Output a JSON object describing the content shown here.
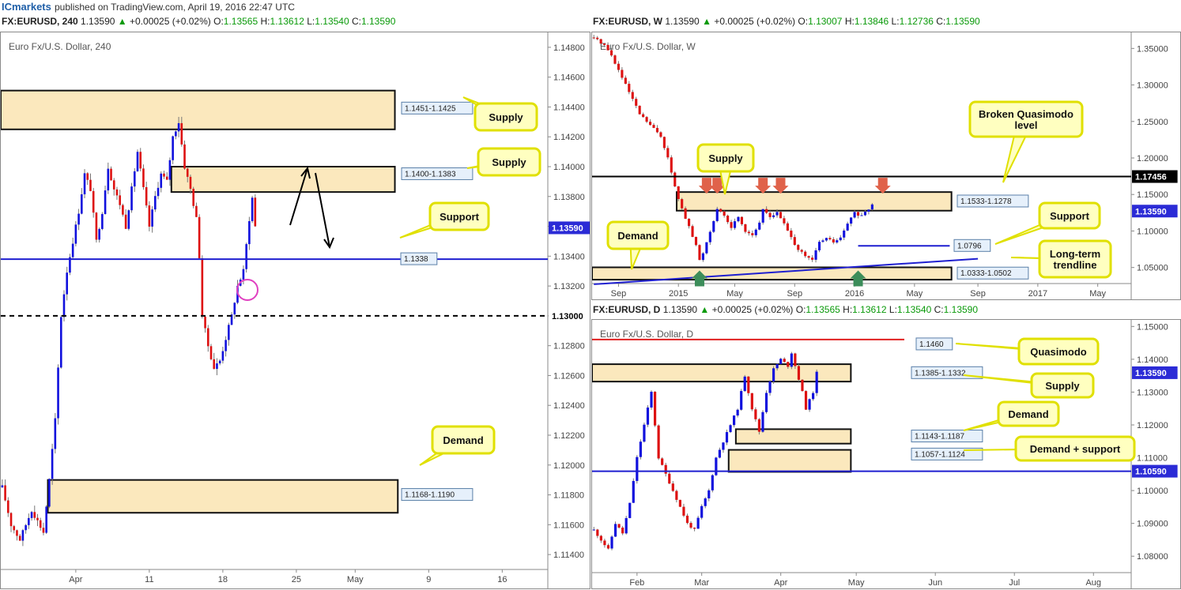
{
  "publisher": {
    "brand": "ICmarkets",
    "text": "published on TradingView.com, April 19, 2016 22:47 UTC"
  },
  "headers": {
    "h4": {
      "symbol": "FX:EURUSD, 240",
      "price": "1.13590",
      "change": "+0.00025 (+0.02%)",
      "o": "1.13565",
      "h": "1.13612",
      "l": "1.13540",
      "c": "1.13590"
    },
    "w": {
      "symbol": "FX:EURUSD, W",
      "price": "1.13590",
      "change": "+0.00025 (+0.02%)",
      "o": "1.13007",
      "h": "1.13846",
      "l": "1.12736",
      "c": "1.13590"
    },
    "d": {
      "symbol": "FX:EURUSD, D",
      "price": "1.13590",
      "change": "+0.00025 (+0.02%)",
      "o": "1.13565",
      "h": "1.13612",
      "l": "1.13540",
      "c": "1.13590"
    }
  },
  "labels": {
    "o": "O:",
    "h": "H:",
    "l": "L:",
    "c": "C:",
    "up": "▲"
  },
  "colors": {
    "bull": "#1010dd",
    "bear": "#dd1111",
    "zone_fill": "#fbe8bd",
    "callout_fill": "#ffffc0",
    "callout_border": "#e0e000",
    "support": "#1f1fd0",
    "price_tag": "#2b2bd6",
    "arrow_marker_red": "#e0624a",
    "arrow_marker_green": "#3c8d5a"
  },
  "chart_data": [
    {
      "id": "h4",
      "type": "candlestick",
      "title": "Euro Fx/U.S. Dollar, 240",
      "ylim": [
        1.113,
        1.149
      ],
      "yticks": [
        "1.14800",
        "1.14600",
        "1.14400",
        "1.14200",
        "1.14000",
        "1.13800",
        "1.13600",
        "1.13400",
        "1.13200",
        "1.13000",
        "1.12800",
        "1.12600",
        "1.12400",
        "1.12200",
        "1.12000",
        "1.11800",
        "1.11600",
        "1.11400"
      ],
      "ytick_values": [
        1.148,
        1.146,
        1.144,
        1.142,
        1.14,
        1.138,
        1.136,
        1.134,
        1.132,
        1.13,
        1.128,
        1.126,
        1.124,
        1.122,
        1.12,
        1.118,
        1.116,
        1.114
      ],
      "xticks": [
        "Apr",
        "11",
        "18",
        "25",
        "May",
        "9",
        "16"
      ],
      "xtick_index": [
        25,
        50,
        75,
        100,
        120,
        145,
        170
      ],
      "bars_total": 186,
      "last_price": "1.13590",
      "last_price_value": 1.1359,
      "level_1300": "1.13000",
      "zones": [
        {
          "label": "1.1451-1.1425",
          "lo": 1.1425,
          "hi": 1.1451,
          "x0": 0,
          "x1": 133
        },
        {
          "label": "1.1400-1.1383",
          "lo": 1.1383,
          "hi": 1.14,
          "x0": 58,
          "x1": 133
        },
        {
          "label": "1.1168-1.1190",
          "lo": 1.1168,
          "hi": 1.119,
          "x0": 16,
          "x1": 134
        }
      ],
      "support": {
        "label": "1.1338",
        "value": 1.1338
      },
      "callouts": [
        "Supply",
        "Supply",
        "Support",
        "Demand"
      ],
      "anchors": [
        [
          0,
          1.1185
        ],
        [
          3,
          1.116
        ],
        [
          6,
          1.115
        ],
        [
          10,
          1.117
        ],
        [
          14,
          1.1155
        ],
        [
          16,
          1.119
        ],
        [
          18,
          1.123
        ],
        [
          20,
          1.13
        ],
        [
          22,
          1.133
        ],
        [
          24,
          1.135
        ],
        [
          26,
          1.137
        ],
        [
          28,
          1.1395
        ],
        [
          30,
          1.1385
        ],
        [
          32,
          1.135
        ],
        [
          34,
          1.137
        ],
        [
          36,
          1.14
        ],
        [
          38,
          1.1385
        ],
        [
          40,
          1.1375
        ],
        [
          42,
          1.136
        ],
        [
          44,
          1.1385
        ],
        [
          46,
          1.141
        ],
        [
          48,
          1.1385
        ],
        [
          50,
          1.136
        ],
        [
          52,
          1.138
        ],
        [
          54,
          1.1395
        ],
        [
          56,
          1.139
        ],
        [
          58,
          1.142
        ],
        [
          60,
          1.143
        ],
        [
          62,
          1.14
        ],
        [
          64,
          1.1385
        ],
        [
          66,
          1.1365
        ],
        [
          67,
          1.134
        ],
        [
          68,
          1.13
        ],
        [
          70,
          1.128
        ],
        [
          72,
          1.1265
        ],
        [
          74,
          1.127
        ],
        [
          76,
          1.1285
        ],
        [
          78,
          1.13
        ],
        [
          80,
          1.132
        ],
        [
          82,
          1.133
        ],
        [
          84,
          1.1365
        ],
        [
          85,
          1.1379
        ],
        [
          86,
          1.136
        ]
      ]
    },
    {
      "id": "w",
      "type": "candlestick",
      "title": "Euro Fx/U.S. Dollar, W",
      "ylim": [
        1.028,
        1.372
      ],
      "yticks": [
        "1.35000",
        "1.30000",
        "1.25000",
        "1.20000",
        "1.15000",
        "1.10000",
        "1.05000"
      ],
      "ytick_values": [
        1.35,
        1.3,
        1.25,
        1.2,
        1.15,
        1.1,
        1.05
      ],
      "xticks": [
        "Sep",
        "2015",
        "May",
        "Sep",
        "2016",
        "May",
        "Sep",
        "2017",
        "May"
      ],
      "xtick_index": [
        7,
        24,
        40,
        57,
        74,
        91,
        109,
        126,
        143
      ],
      "bars_total": 153,
      "last_price": "1.13590",
      "last_price_value": 1.1359,
      "broken_qm": {
        "label": "1.17456",
        "value": 1.17456
      },
      "zones": [
        {
          "label": "1.1533-1.1278",
          "lo": 1.1278,
          "hi": 1.1533,
          "x0": 24,
          "x1": 101
        },
        {
          "label": "1.0333-1.0502",
          "lo": 1.0333,
          "hi": 1.0502,
          "x0": 0,
          "x1": 101
        }
      ],
      "support": {
        "label": "1.0796",
        "value": 1.0796,
        "x0": 75,
        "x1": 101
      },
      "trendline": [
        [
          0,
          1.027
        ],
        [
          109,
          1.062
        ]
      ],
      "callouts": [
        "Broken Quasimodo level",
        "Supply",
        "Support",
        "Demand",
        "Long-term trendline"
      ],
      "red_markers": [
        32,
        35,
        48,
        53,
        82
      ],
      "green_markers": [
        30,
        75
      ],
      "anchors": [
        [
          0,
          1.365
        ],
        [
          3,
          1.355
        ],
        [
          5,
          1.34
        ],
        [
          7,
          1.32
        ],
        [
          10,
          1.29
        ],
        [
          13,
          1.26
        ],
        [
          16,
          1.245
        ],
        [
          19,
          1.23
        ],
        [
          21,
          1.2
        ],
        [
          23,
          1.16
        ],
        [
          25,
          1.13
        ],
        [
          27,
          1.105
        ],
        [
          29,
          1.08
        ],
        [
          30,
          1.06
        ],
        [
          31,
          1.07
        ],
        [
          33,
          1.1
        ],
        [
          35,
          1.13
        ],
        [
          37,
          1.12
        ],
        [
          39,
          1.105
        ],
        [
          41,
          1.12
        ],
        [
          43,
          1.1
        ],
        [
          45,
          1.095
        ],
        [
          47,
          1.11
        ],
        [
          48,
          1.13
        ],
        [
          50,
          1.12
        ],
        [
          52,
          1.125
        ],
        [
          54,
          1.11
        ],
        [
          56,
          1.09
        ],
        [
          58,
          1.075
        ],
        [
          60,
          1.065
        ],
        [
          62,
          1.06
        ],
        [
          64,
          1.085
        ],
        [
          66,
          1.09
        ],
        [
          68,
          1.085
        ],
        [
          70,
          1.09
        ],
        [
          72,
          1.11
        ],
        [
          74,
          1.125
        ],
        [
          76,
          1.12
        ],
        [
          78,
          1.13
        ],
        [
          79,
          1.1359
        ]
      ]
    },
    {
      "id": "d",
      "type": "candlestick",
      "title": "Euro Fx/U.S. Dollar, D",
      "ylim": [
        1.075,
        1.152
      ],
      "yticks": [
        "1.15000",
        "1.14000",
        "1.13000",
        "1.12000",
        "1.11000",
        "1.10000",
        "1.09000",
        "1.08000"
      ],
      "ytick_values": [
        1.15,
        1.14,
        1.13,
        1.12,
        1.11,
        1.1,
        1.09,
        1.08
      ],
      "xticks": [
        "Feb",
        "Mar",
        "Apr",
        "May",
        "Jun",
        "Jul",
        "Aug"
      ],
      "xtick_index": [
        12,
        30,
        52,
        73,
        95,
        117,
        139
      ],
      "bars_total": 150,
      "last_price": "1.13590",
      "last_price_value": 1.1359,
      "qm_level": {
        "label": "1.1460",
        "value": 1.146
      },
      "support_level": {
        "label": "1.10590",
        "value": 1.1059
      },
      "zones": [
        {
          "label": "1.1385-1.1332",
          "lo": 1.1332,
          "hi": 1.1385,
          "x0": 0,
          "x1": 71
        },
        {
          "label": "1.1143-1.1187",
          "lo": 1.1143,
          "hi": 1.1187,
          "x0": 40,
          "x1": 71
        },
        {
          "label": "1.1057-1.1124",
          "lo": 1.1057,
          "hi": 1.1124,
          "x0": 38,
          "x1": 71
        }
      ],
      "callouts": [
        "Quasimodo",
        "Supply",
        "Demand",
        "Demand + support"
      ],
      "anchors": [
        [
          0,
          1.088
        ],
        [
          2,
          1.085
        ],
        [
          4,
          1.082
        ],
        [
          6,
          1.09
        ],
        [
          8,
          1.087
        ],
        [
          10,
          1.096
        ],
        [
          12,
          1.11
        ],
        [
          14,
          1.12
        ],
        [
          16,
          1.13
        ],
        [
          17,
          1.12
        ],
        [
          18,
          1.11
        ],
        [
          20,
          1.105
        ],
        [
          22,
          1.1
        ],
        [
          24,
          1.095
        ],
        [
          26,
          1.09
        ],
        [
          28,
          1.088
        ],
        [
          30,
          1.095
        ],
        [
          32,
          1.1
        ],
        [
          34,
          1.11
        ],
        [
          36,
          1.115
        ],
        [
          38,
          1.12
        ],
        [
          40,
          1.125
        ],
        [
          42,
          1.135
        ],
        [
          44,
          1.125
        ],
        [
          46,
          1.118
        ],
        [
          48,
          1.13
        ],
        [
          50,
          1.137
        ],
        [
          52,
          1.14
        ],
        [
          54,
          1.138
        ],
        [
          55,
          1.142
        ],
        [
          56,
          1.138
        ],
        [
          58,
          1.13
        ],
        [
          59,
          1.125
        ],
        [
          61,
          1.13
        ],
        [
          62,
          1.1359
        ]
      ]
    }
  ]
}
